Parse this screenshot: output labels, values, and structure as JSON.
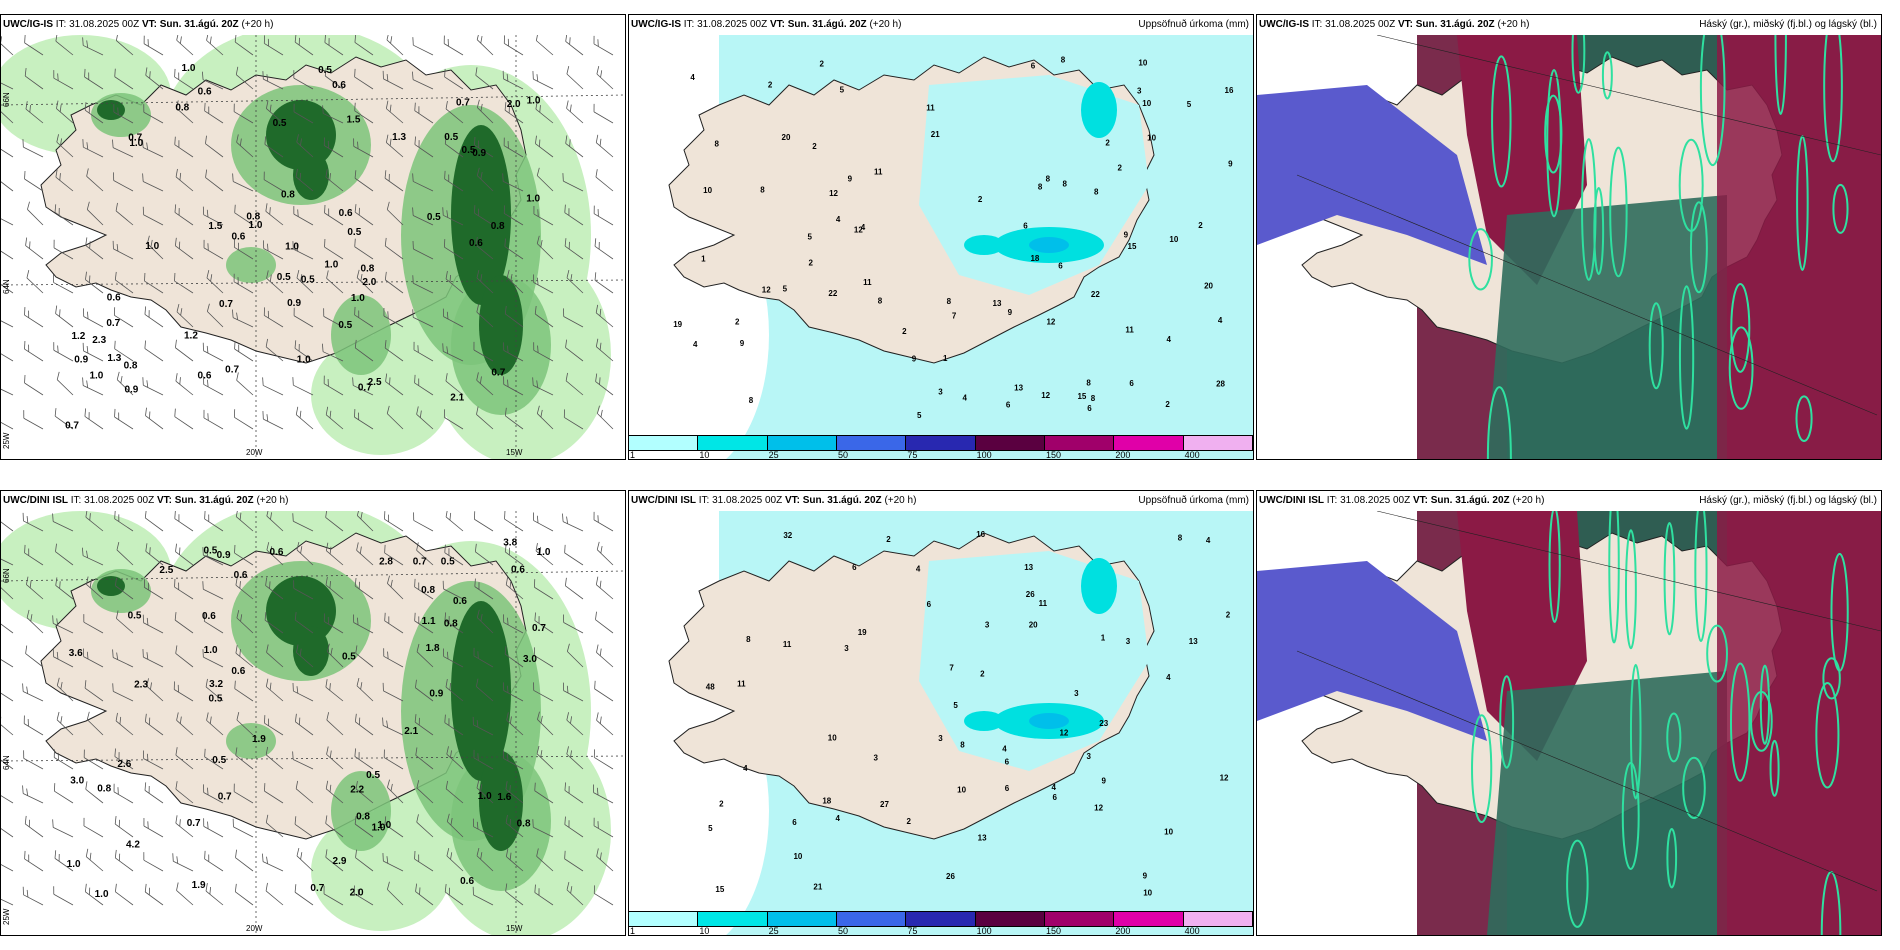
{
  "panels": [
    {
      "model": "UWC/IG-IS",
      "it_label": "IT:",
      "it": "31.08.2025 00Z",
      "vt_label": "VT:",
      "vt": "Sun. 31.ágú. 20Z",
      "lead": "(+20 h)",
      "title_right": "",
      "kind": "wind",
      "labels": [
        "0.8",
        "0.8",
        "1.0",
        "2.1",
        "0.7",
        "1.0",
        "0.5",
        "0.6",
        "0.7",
        "2.0",
        "0.5",
        "0.6",
        "0.7",
        "1.0",
        "0.7",
        "0.6",
        "0.9",
        "0.5",
        "0.5",
        "0.7",
        "0.6",
        "0.8",
        "0.5",
        "0.8",
        "0.5",
        "0.7",
        "1.2",
        "1.0",
        "0.6",
        "0.7",
        "1.0",
        "0.9",
        "1.0",
        "1.0",
        "0.5",
        "1.5",
        "0.5",
        "0.7",
        "1.0",
        "2.0",
        "1.3",
        "0.5",
        "1.0",
        "1.0",
        "0.6",
        "0.9",
        "0.6",
        "0.9",
        "0.8",
        "2.5",
        "1.5",
        "1.0",
        "1.3",
        "1.2",
        "0.8",
        "2.3"
      ],
      "axis": {
        "lat1": "66N",
        "lat2": "64N",
        "lon1": "20W",
        "lon2": "15W",
        "lon3": "25W"
      }
    },
    {
      "model": "UWC/IG-IS",
      "it_label": "IT:",
      "it": "31.08.2025 00Z",
      "vt_label": "VT:",
      "vt": "Sun. 31.ágú. 20Z",
      "lead": "(+20 h)",
      "title_right": "Uppsöfnuð úrkoma (mm)",
      "kind": "precip",
      "labels": [
        "8",
        "8",
        "2",
        "2",
        "10",
        "5",
        "2",
        "11",
        "10",
        "11",
        "8",
        "10",
        "15",
        "13",
        "5",
        "8",
        "10",
        "4",
        "21",
        "8",
        "10",
        "1",
        "2",
        "6",
        "1",
        "8",
        "9",
        "7",
        "6",
        "8",
        "12",
        "9",
        "11",
        "8",
        "20",
        "18",
        "11",
        "5",
        "13",
        "8",
        "22",
        "2",
        "9",
        "6",
        "8",
        "12",
        "12",
        "9",
        "2",
        "12",
        "16",
        "22",
        "19",
        "9",
        "2",
        "9",
        "28",
        "6",
        "4",
        "20",
        "15",
        "12",
        "8",
        "6",
        "2",
        "2",
        "4",
        "5",
        "3",
        "2",
        "3",
        "4",
        "5",
        "2",
        "4",
        "4",
        "4",
        "6",
        "8"
      ],
      "colorbar": {
        "colors": [
          "#b2ffff",
          "#00e6e6",
          "#00bfea",
          "#3a67e8",
          "#2828b0",
          "#5a0040",
          "#a0006a",
          "#e000a8",
          "#f0b0f0"
        ],
        "ticks": [
          "1",
          "10",
          "25",
          "50",
          "75",
          "100",
          "150",
          "200",
          "400"
        ]
      }
    },
    {
      "model": "UWC/IG-IS",
      "it_label": "IT:",
      "it": "31.08.2025 00Z",
      "vt_label": "VT:",
      "vt": "Sun. 31.ágú. 20Z",
      "lead": "(+20 h)",
      "title_right": "Háský (gr.), miðský (fj.bl.) og lágský (bl.)",
      "kind": "cloud"
    },
    {
      "model": "UWC/DINI ISL",
      "it_label": "IT:",
      "it": "31.08.2025 00Z",
      "vt_label": "VT:",
      "vt": "Sun. 31.ágú. 20Z",
      "lead": "(+20 h)",
      "title_right": "",
      "kind": "wind",
      "labels": [
        "0.8",
        "2.0",
        "0.7",
        "3.8",
        "3.0",
        "1.9",
        "1.0",
        "0.7",
        "0.5",
        "0.5",
        "1.0",
        "3.2",
        "1.0",
        "0.9",
        "0.8",
        "0.6",
        "0.5",
        "0.6",
        "1.0",
        "0.5",
        "1.9",
        "4.2",
        "2.2",
        "3.0",
        "0.5",
        "2.9",
        "1.0",
        "0.6",
        "0.7",
        "2.3",
        "2.6",
        "0.8",
        "2.5",
        "1.8",
        "0.7",
        "0.6",
        "0.8",
        "1.0",
        "0.8",
        "3.6",
        "1.6",
        "0.5",
        "1.0",
        "0.6",
        "0.9",
        "0.5",
        "2.1",
        "2.8",
        "0.6",
        "0.6",
        "0.7",
        "1.1"
      ],
      "axis": {
        "lat1": "66N",
        "lat2": "64N",
        "lon1": "20W",
        "lon2": "15W",
        "lon3": "25W"
      }
    },
    {
      "model": "UWC/DINI ISL",
      "it_label": "IT:",
      "it": "31.08.2025 00Z",
      "vt_label": "VT:",
      "vt": "Sun. 31.ágú. 20Z",
      "lead": "(+20 h)",
      "title_right": "Uppsöfnuð úrkoma (mm)",
      "kind": "precip",
      "labels": [
        "12",
        "1",
        "4",
        "8",
        "6",
        "6",
        "2",
        "11",
        "11",
        "8",
        "2",
        "6",
        "6",
        "9",
        "13",
        "18",
        "21",
        "27",
        "26",
        "2",
        "4",
        "4",
        "2",
        "7",
        "8",
        "9",
        "16",
        "23",
        "3",
        "3",
        "5",
        "10",
        "10",
        "6",
        "11",
        "26",
        "4",
        "10",
        "12",
        "19",
        "10",
        "12",
        "13",
        "13",
        "20",
        "48",
        "32",
        "5",
        "15",
        "10",
        "6",
        "3",
        "3",
        "3",
        "2",
        "4",
        "4",
        "3",
        "3",
        "4"
      ],
      "colorbar": {
        "colors": [
          "#b2ffff",
          "#00e6e6",
          "#00bfea",
          "#3a67e8",
          "#2828b0",
          "#5a0040",
          "#a0006a",
          "#e000a8",
          "#f0b0f0"
        ],
        "ticks": [
          "1",
          "10",
          "25",
          "50",
          "75",
          "100",
          "150",
          "200",
          "400"
        ]
      }
    },
    {
      "model": "UWC/DINI ISL",
      "it_label": "IT:",
      "it": "31.08.2025 00Z",
      "vt_label": "VT:",
      "vt": "Sun. 31.ágú. 20Z",
      "lead": "(+20 h)",
      "title_right": "Háský (gr.), miðský (fj.bl.) og lágský (bl.)",
      "kind": "cloud"
    }
  ]
}
